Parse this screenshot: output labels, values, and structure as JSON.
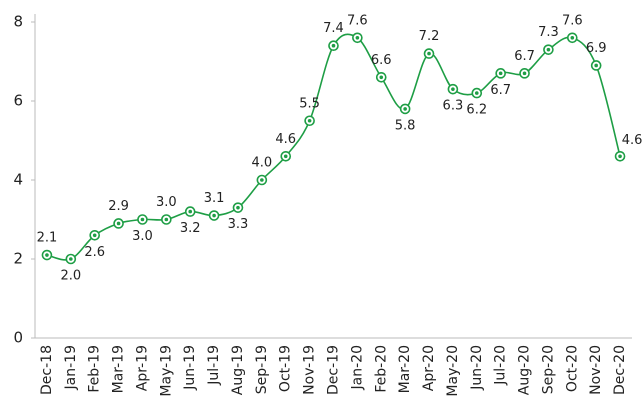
{
  "chart_data": {
    "type": "line",
    "categories": [
      "Dec-18",
      "Jan-19",
      "Feb-19",
      "Mar-19",
      "Apr-19",
      "May-19",
      "Jun-19",
      "Jul-19",
      "Aug-19",
      "Sep-19",
      "Oct-19",
      "Nov-19",
      "Dec-19",
      "Jan-20",
      "Feb-20",
      "Mar-20",
      "Apr-20",
      "May-20",
      "Jun-20",
      "Jul-20",
      "Aug-20",
      "Sep-20",
      "Oct-20",
      "Nov-20",
      "Dec-20"
    ],
    "values": [
      2.1,
      2.0,
      2.6,
      2.9,
      3.0,
      3.0,
      3.2,
      3.1,
      3.3,
      4.0,
      4.6,
      5.5,
      7.4,
      7.6,
      6.6,
      5.8,
      7.2,
      6.3,
      6.2,
      6.7,
      6.7,
      7.3,
      7.6,
      6.9,
      4.6
    ],
    "value_labels": [
      "2.1",
      "2.0",
      "2.6",
      "2.9",
      "3.0",
      "3.0",
      "3.2",
      "3.1",
      "3.3",
      "4.0",
      "4.6",
      "5.5",
      "7.4",
      "7.6",
      "6.6",
      "5.8",
      "7.2",
      "6.3",
      "6.2",
      "6.7",
      "6.7",
      "7.3",
      "7.6",
      "6.9",
      "4.6"
    ],
    "color": "#1e9e45",
    "ylim": [
      0,
      8
    ],
    "yticks": [
      0,
      2,
      4,
      6,
      8
    ],
    "grid": false
  }
}
